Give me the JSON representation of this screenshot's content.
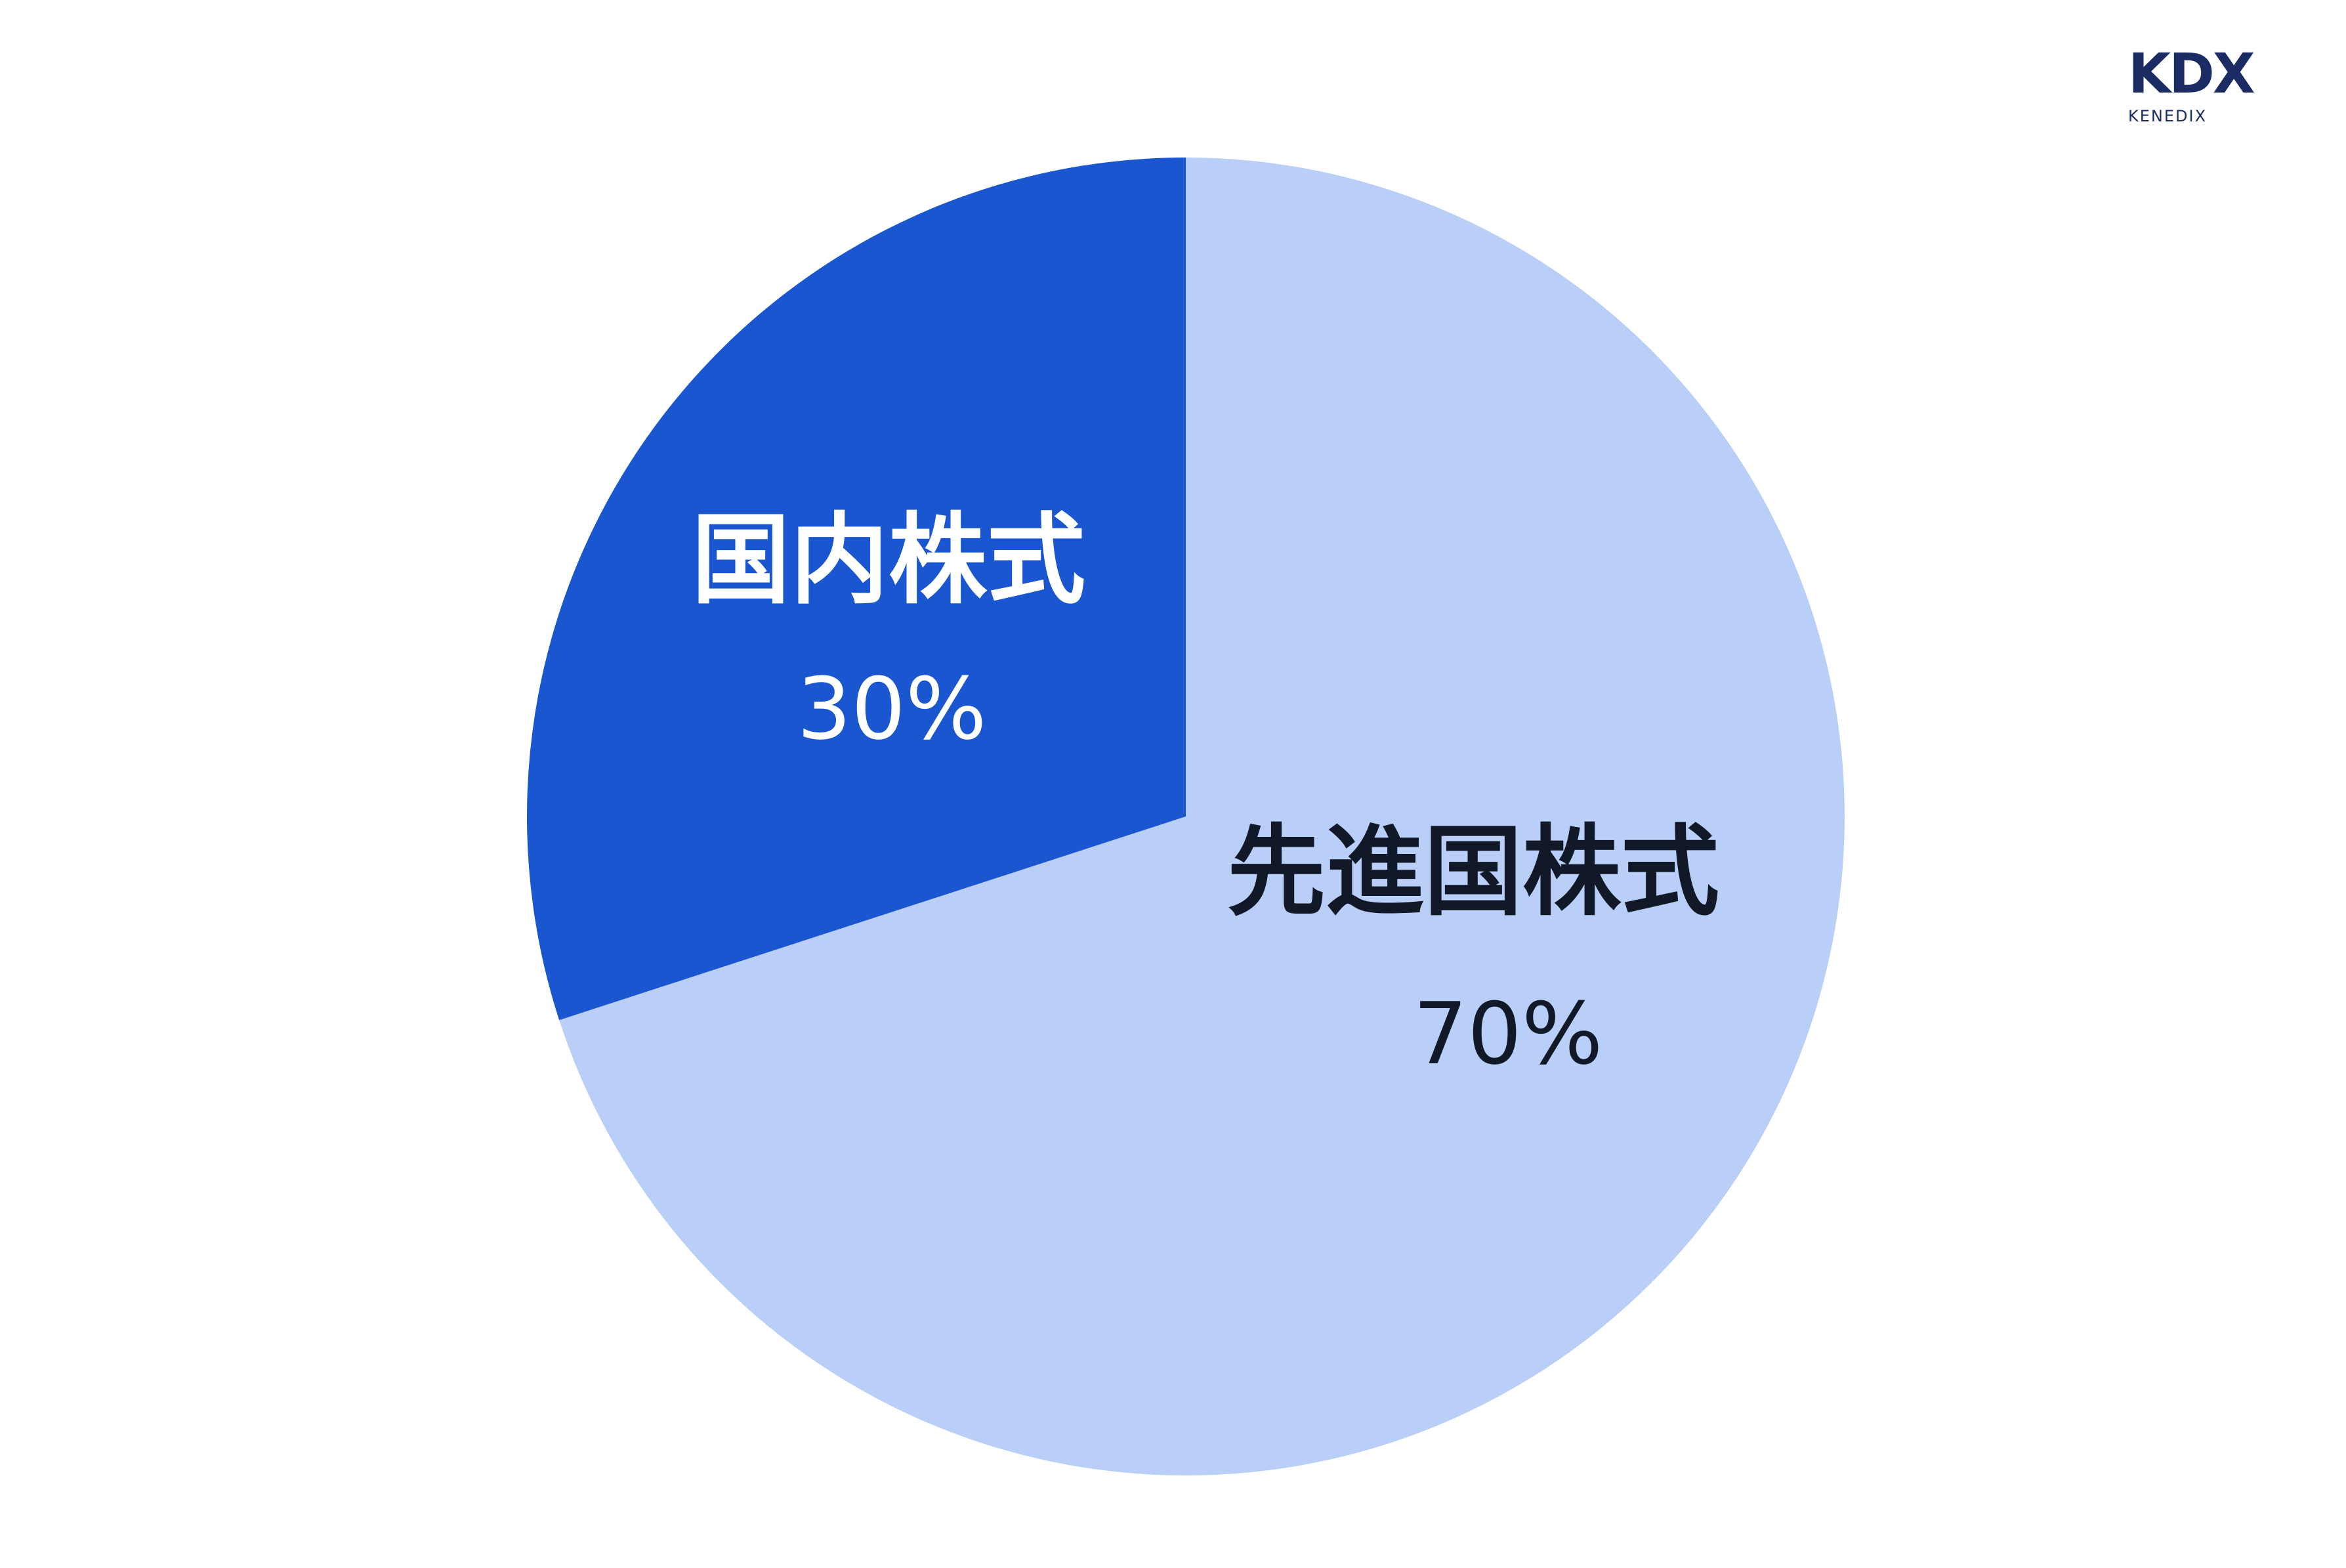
{
  "logo": {
    "main": "KDX",
    "sub": "KENEDIX",
    "color": "#1b2b63"
  },
  "chart_data": {
    "type": "pie",
    "start": "top",
    "direction": "clockwise",
    "slices": [
      {
        "label": "先進国株式",
        "value": 70,
        "value_label": "70%",
        "color": "#bacff7",
        "text_color": "#111827"
      },
      {
        "label": "国内株式",
        "value": 30,
        "value_label": "30%",
        "color": "#1a56d0",
        "text_color": "#ffffff"
      }
    ]
  }
}
